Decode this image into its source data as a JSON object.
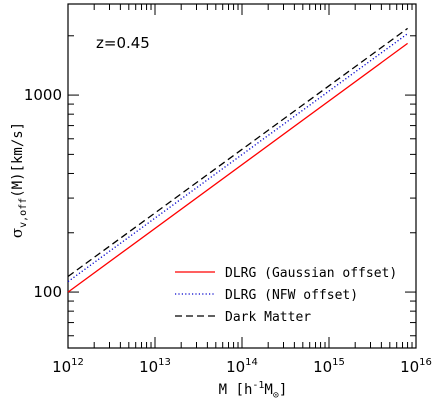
{
  "chart_data": {
    "type": "line",
    "title": "",
    "annotation": "z=0.45",
    "xlabel": {
      "prefix": "M [h",
      "sup": "-1",
      "main": "M",
      "sub": "⊙",
      "suffix": "]"
    },
    "ylabel": {
      "sigma": "σ",
      "sub": "v,off",
      "rest": "(M)[km/s]"
    },
    "xscale": "log",
    "yscale": "log",
    "xlim": [
      1000000000000.0,
      1e+16
    ],
    "ylim": [
      52,
      2900
    ],
    "xticks": [
      {
        "value": 1000000000000.0,
        "base": "10",
        "exp": "12"
      },
      {
        "value": 10000000000000.0,
        "base": "10",
        "exp": "13"
      },
      {
        "value": 100000000000000.0,
        "base": "10",
        "exp": "14"
      },
      {
        "value": 1000000000000000.0,
        "base": "10",
        "exp": "15"
      },
      {
        "value": 1e+16,
        "base": "10",
        "exp": "16"
      }
    ],
    "yticks": [
      {
        "value": 100,
        "label": "100"
      },
      {
        "value": 1000,
        "label": "1000"
      }
    ],
    "legend_position": "bottom-right",
    "grid": false,
    "series": [
      {
        "name": "DLRG (Gaussian offset)",
        "color": "#ff0000",
        "style": "solid",
        "x": [
          1000000000000.0,
          8000000000000000.0
        ],
        "y": [
          100,
          1830
        ]
      },
      {
        "name": "DLRG (NFW offset)",
        "color": "#0000cc",
        "style": "dotted",
        "x": [
          1000000000000.0,
          8000000000000000.0
        ],
        "y": [
          113,
          2050
        ]
      },
      {
        "name": "Dark Matter",
        "color": "#000000",
        "style": "dashed",
        "x": [
          1000000000000.0,
          8000000000000000.0
        ],
        "y": [
          120,
          2180
        ]
      }
    ]
  }
}
